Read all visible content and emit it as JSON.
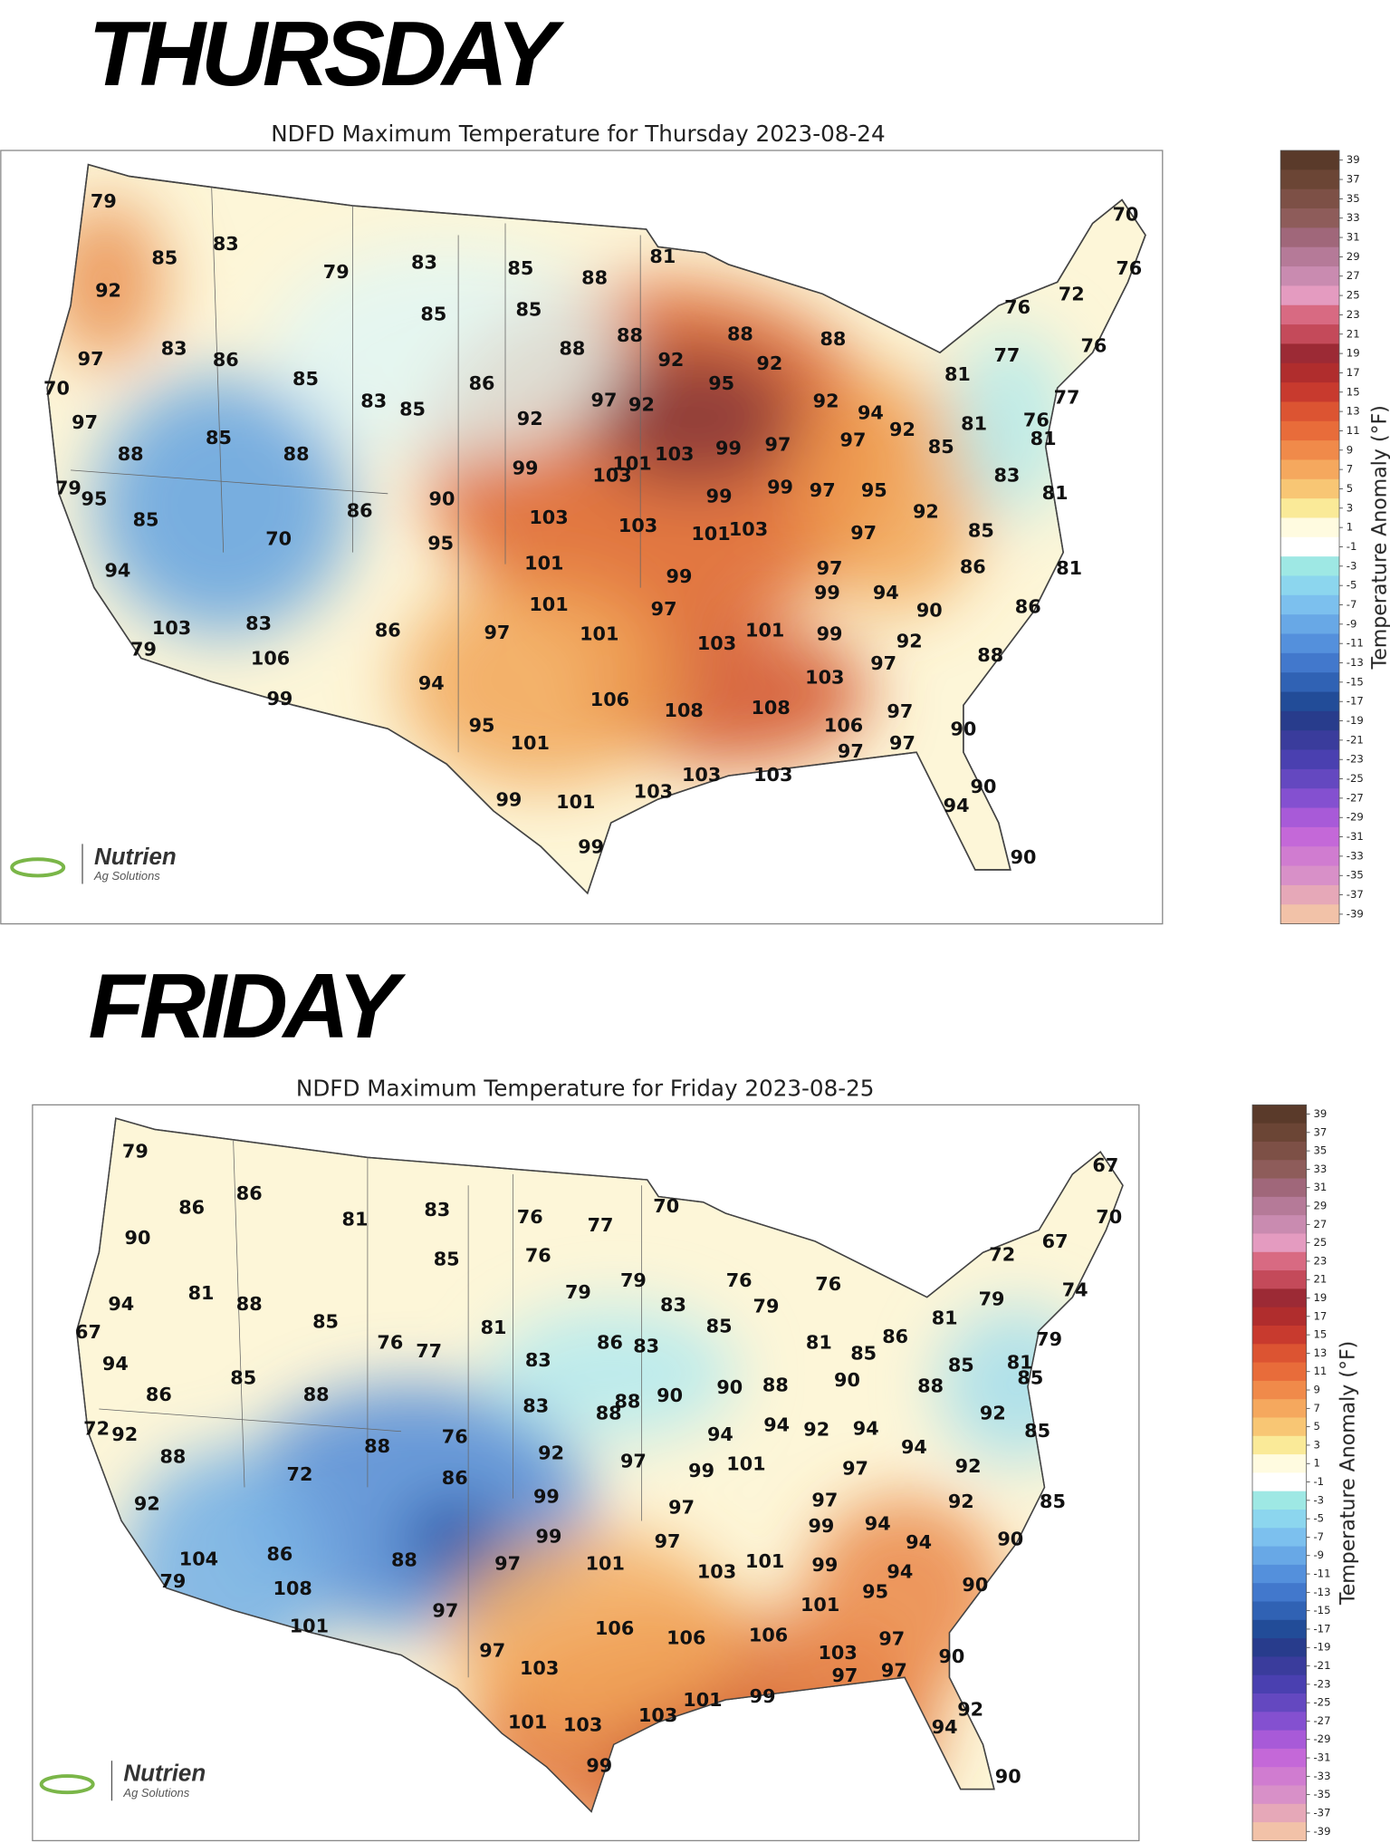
{
  "panels": [
    {
      "heading": "THURSDAY",
      "title": "NDFD Maximum Temperature for Thursday 2023-08-24",
      "labels": [
        79,
        85,
        83,
        92,
        79,
        83,
        85,
        88,
        81,
        70,
        76,
        72,
        76,
        85,
        85,
        83,
        86,
        97,
        88,
        88,
        88,
        88,
        92,
        92,
        77,
        76,
        85,
        86,
        70,
        95,
        81,
        77,
        83,
        85,
        97,
        92,
        92,
        94,
        92,
        97,
        92,
        81,
        76,
        81,
        85,
        88,
        88,
        99,
        101,
        103,
        103,
        99,
        97,
        97,
        85,
        83,
        81,
        79,
        95,
        85,
        86,
        90,
        99,
        99,
        97,
        95,
        92,
        103,
        103,
        101,
        103,
        97,
        85,
        70,
        95,
        94,
        101,
        99,
        97,
        86,
        81,
        101,
        97,
        99,
        94,
        90,
        86,
        103,
        83,
        86,
        97,
        101,
        103,
        101,
        99,
        92,
        88,
        79,
        106,
        97,
        103,
        94,
        99,
        106,
        108,
        108,
        97,
        106,
        95,
        101,
        90,
        97,
        97,
        103,
        103,
        103,
        90,
        99,
        101,
        94,
        99,
        90
      ],
      "colorbar": {
        "label": "Temperature Anomaly (°F)",
        "ticks": [
          39,
          37,
          35,
          33,
          31,
          29,
          27,
          25,
          23,
          21,
          19,
          17,
          15,
          13,
          11,
          9,
          7,
          5,
          3,
          1,
          -1,
          -3,
          -5,
          -7,
          -9,
          -11,
          -13,
          -15,
          -17,
          -19,
          -21,
          -23,
          -25,
          -27,
          -29,
          -31,
          -33,
          -35,
          -37,
          -39
        ]
      },
      "logo": {
        "name": "Nutrien",
        "tagline": "Ag Solutions"
      }
    },
    {
      "heading": "FRIDAY",
      "title": "NDFD Maximum Temperature for Friday 2023-08-25",
      "labels": [
        79,
        86,
        86,
        90,
        81,
        83,
        76,
        77,
        70,
        67,
        70,
        67,
        72,
        85,
        76,
        79,
        79,
        83,
        76,
        76,
        79,
        74,
        79,
        94,
        81,
        88,
        85,
        81,
        85,
        81,
        81,
        67,
        76,
        77,
        86,
        83,
        85,
        86,
        85,
        79,
        81,
        85,
        94,
        83,
        90,
        88,
        90,
        88,
        86,
        85,
        88,
        83,
        88,
        88,
        90,
        92,
        85,
        72,
        92,
        94,
        94,
        92,
        94,
        76,
        88,
        94,
        88,
        92,
        97,
        99,
        101,
        97,
        92,
        72,
        86,
        92,
        99,
        97,
        97,
        92,
        85,
        94,
        99,
        94,
        90,
        99,
        97,
        104,
        86,
        88,
        97,
        101,
        103,
        101,
        99,
        94,
        90,
        79,
        108,
        95,
        97,
        101,
        101,
        106,
        106,
        106,
        97,
        90,
        97,
        103,
        103,
        97,
        97,
        101,
        99,
        103,
        92,
        101,
        103,
        94,
        99,
        90
      ],
      "colorbar": {
        "label": "Temperature Anomaly (°F)",
        "ticks": [
          39,
          37,
          35,
          33,
          31,
          29,
          27,
          25,
          23,
          21,
          19,
          17,
          15,
          13,
          11,
          9,
          7,
          5,
          3,
          1,
          -1,
          -3,
          -5,
          -7,
          -9,
          -11,
          -13,
          -15,
          -17,
          -19,
          -21,
          -23,
          -25,
          -27,
          -29,
          -31,
          -33,
          -35,
          -37,
          -39
        ]
      },
      "logo": {
        "name": "Nutrien",
        "tagline": "Ag Solutions"
      }
    }
  ]
}
